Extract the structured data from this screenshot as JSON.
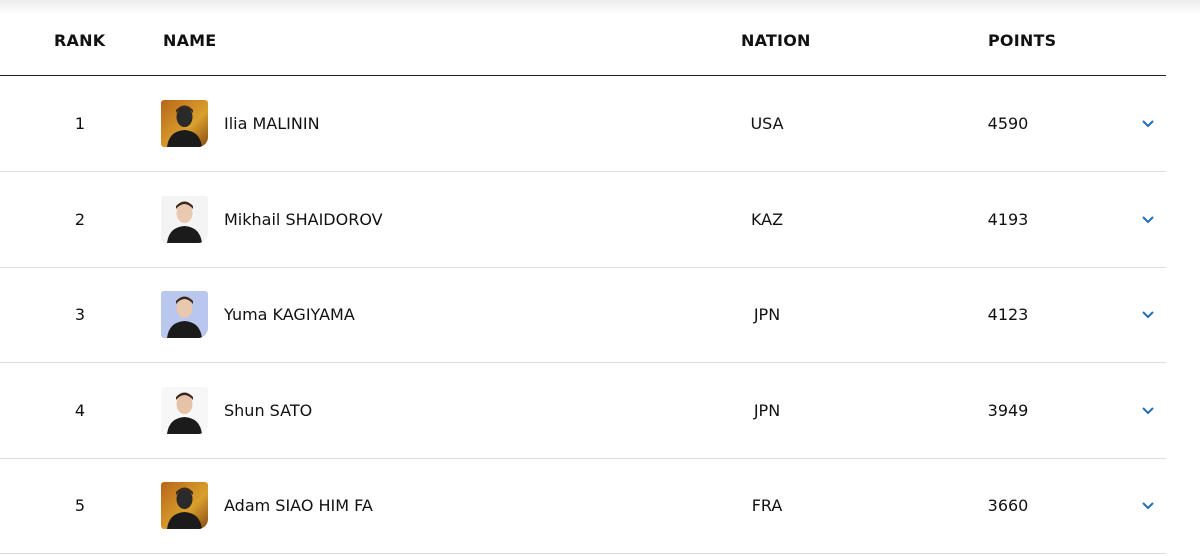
{
  "table": {
    "header": [
      "RANK",
      "NAME",
      "NATION",
      "POINTS"
    ],
    "rows": [
      [
        1,
        "Ilia MALININ",
        "USA",
        4590
      ],
      [
        2,
        "Mikhail SHAIDOROV",
        "KAZ",
        4193
      ],
      [
        3,
        "Yuma KAGIYAMA",
        "JPN",
        4123
      ],
      [
        4,
        "Shun SATO",
        "JPN",
        3949
      ],
      [
        5,
        "Adam SIAO HIM FA",
        "FRA",
        3660
      ]
    ]
  }
}
